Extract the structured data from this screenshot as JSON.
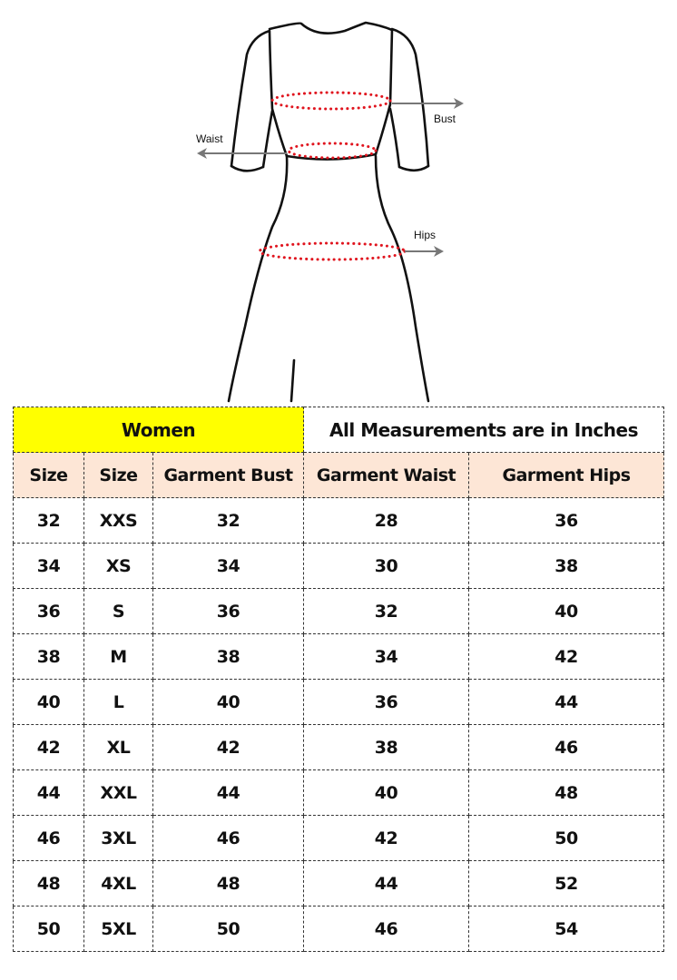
{
  "diagram": {
    "labels": {
      "bust": "Bust",
      "waist": "Waist",
      "hips": "Hips"
    },
    "colors": {
      "outline": "#111111",
      "measure_dots": "#e0141e",
      "arrow": "#777777"
    }
  },
  "table": {
    "title": "Women",
    "note": "All Measurements are in Inches",
    "colors": {
      "title_bg": "#ffff00",
      "header_bg": "#fde6d6"
    },
    "headers": [
      "Size",
      "Size",
      "Garment Bust",
      "Garment Waist",
      "Garment Hips"
    ],
    "rows": [
      [
        "32",
        "XXS",
        "32",
        "28",
        "36"
      ],
      [
        "34",
        "XS",
        "34",
        "30",
        "38"
      ],
      [
        "36",
        "S",
        "36",
        "32",
        "40"
      ],
      [
        "38",
        "M",
        "38",
        "34",
        "42"
      ],
      [
        "40",
        "L",
        "40",
        "36",
        "44"
      ],
      [
        "42",
        "XL",
        "42",
        "38",
        "46"
      ],
      [
        "44",
        "XXL",
        "44",
        "40",
        "48"
      ],
      [
        "46",
        "3XL",
        "46",
        "42",
        "50"
      ],
      [
        "48",
        "4XL",
        "48",
        "44",
        "52"
      ],
      [
        "50",
        "5XL",
        "50",
        "46",
        "54"
      ]
    ]
  }
}
